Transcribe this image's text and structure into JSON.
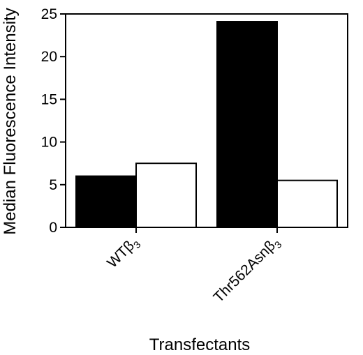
{
  "chart_data": {
    "type": "bar",
    "title": "",
    "xlabel": "Transfectants",
    "ylabel": "Median Fluorescence Intensity",
    "ylim": [
      0,
      25
    ],
    "yticks": [
      0,
      5,
      10,
      15,
      20,
      25
    ],
    "categories": [
      {
        "base": "WT",
        "sub": "β",
        "subscript": "3"
      },
      {
        "base": "Thr562Asn",
        "sub": "β",
        "subscript": "3"
      }
    ],
    "series": [
      {
        "values": [
          6.0,
          24.1
        ],
        "color": "#000000"
      },
      {
        "values": [
          7.5,
          5.5
        ],
        "color": "#ffffff"
      }
    ],
    "grid": false,
    "legend": "none"
  }
}
